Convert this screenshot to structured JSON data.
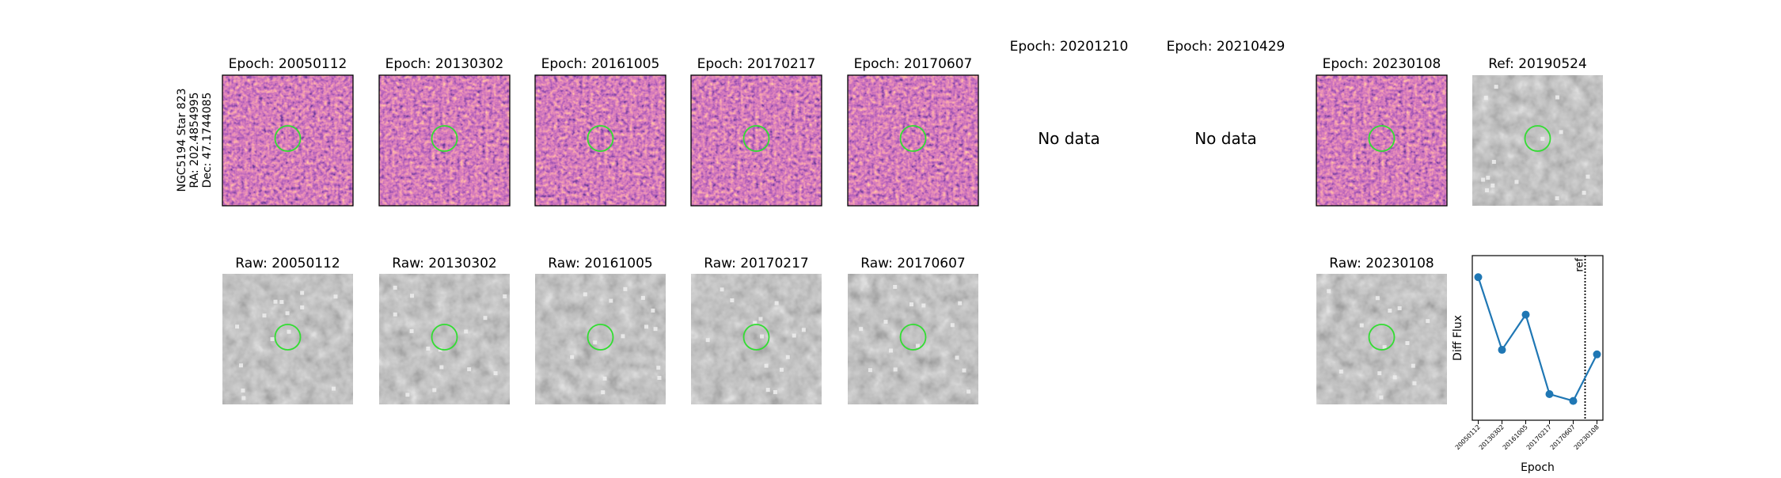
{
  "row_label": [
    "NGC5194 Star 823",
    "RA: 202.4854995",
    "Dec: 47.1744085"
  ],
  "epoch_panels": [
    {
      "title": "Epoch: 20050112"
    },
    {
      "title": "Epoch: 20130302"
    },
    {
      "title": "Epoch: 20161005"
    },
    {
      "title": "Epoch: 20170217"
    },
    {
      "title": "Epoch: 20170607"
    },
    {
      "title": "Epoch: 20201210",
      "note": "No data"
    },
    {
      "title": "Epoch: 20210429",
      "note": "No data"
    },
    {
      "title": "Epoch: 20230108"
    }
  ],
  "ref_panel": {
    "title": "Ref: 20190524"
  },
  "raw_panels": [
    {
      "title": "Raw: 20050112"
    },
    {
      "title": "Raw: 20130302"
    },
    {
      "title": "Raw: 20161005"
    },
    {
      "title": "Raw: 20170217"
    },
    {
      "title": "Raw: 20170607"
    },
    {
      "title": "Raw: 20230108"
    }
  ],
  "chart_data": {
    "type": "line",
    "xlabel": "Epoch",
    "ylabel": "Diff Flux",
    "categories": [
      "20050112",
      "20130302",
      "20161005",
      "20170217",
      "20170607",
      "20230108"
    ],
    "series": [
      {
        "name": "Diff Flux",
        "color": "#1f77b4",
        "values": [
          126,
          62,
          93,
          23,
          17,
          58
        ]
      }
    ],
    "xlim": [
      -0.25,
      5.25
    ],
    "ylim": [
      0,
      145
    ],
    "ref_line": {
      "label": "ref",
      "x": 4.5
    }
  }
}
